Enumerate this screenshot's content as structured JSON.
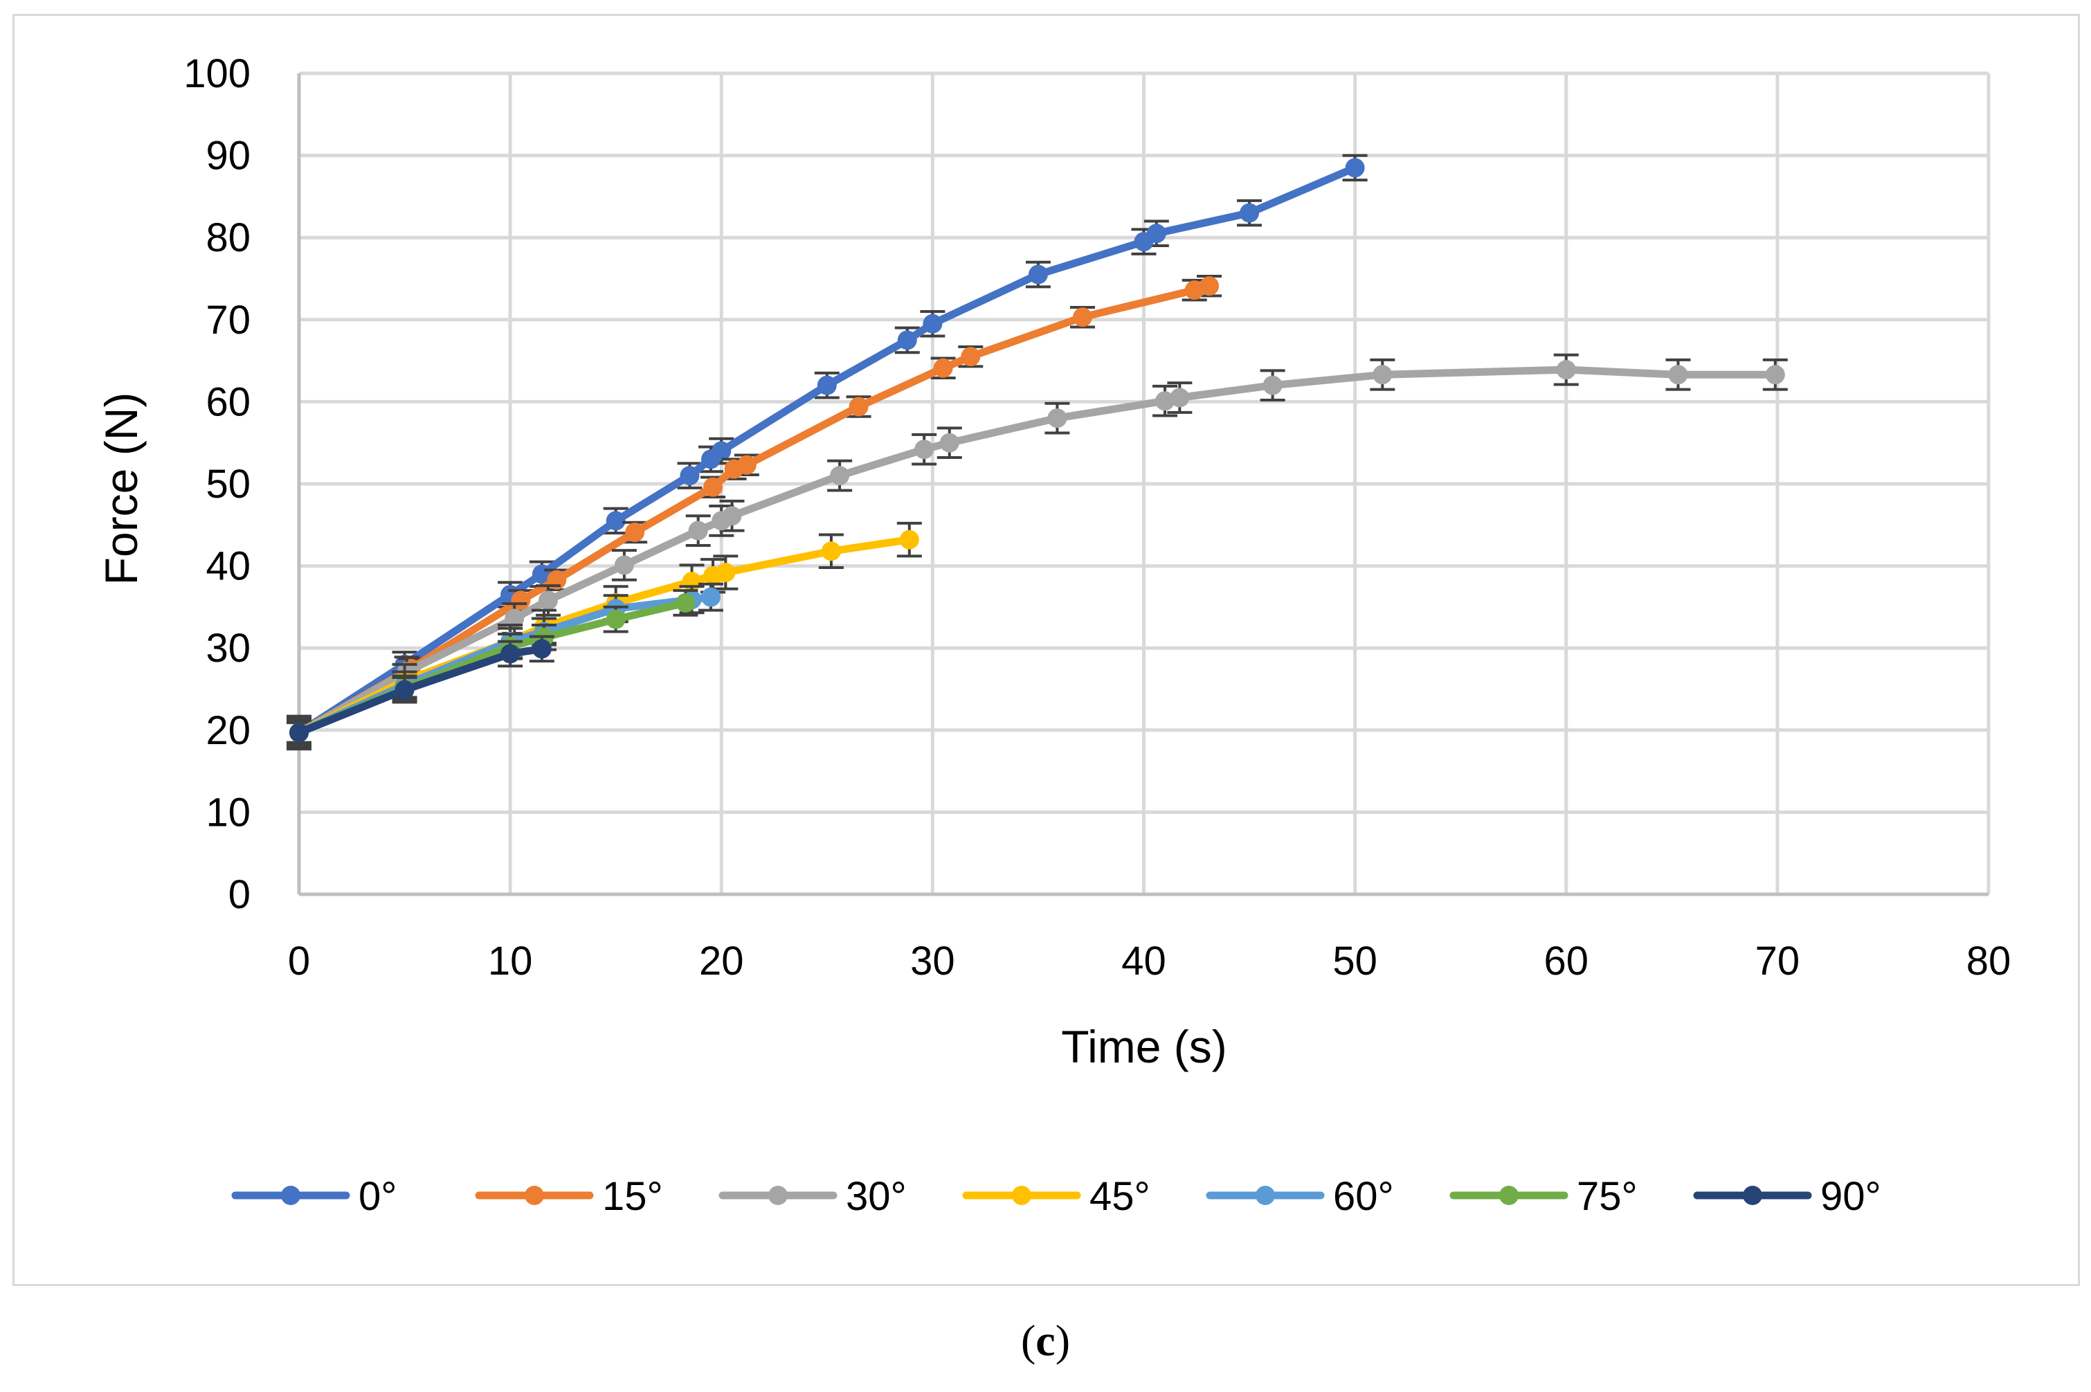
{
  "caption": {
    "open": "(",
    "letter": "c",
    "close": ")"
  },
  "chart_data": {
    "type": "line",
    "title": "",
    "xlabel": "Time (s)",
    "ylabel": "Force (N)",
    "xlim": [
      0,
      80
    ],
    "ylim": [
      0,
      100
    ],
    "xticks": [
      0,
      10,
      20,
      30,
      40,
      50,
      60,
      70,
      80
    ],
    "yticks": [
      0,
      10,
      20,
      30,
      40,
      50,
      60,
      70,
      80,
      90,
      100
    ],
    "grid": true,
    "error_bars": true,
    "legend_position": "bottom",
    "series": [
      {
        "name": "0°",
        "color": "#4472C4",
        "err": 1.5,
        "x": [
          0,
          5,
          10,
          11.5,
          15,
          18.5,
          19.5,
          20,
          25,
          28.8,
          30,
          35,
          40,
          40.6,
          45,
          50
        ],
        "y": [
          19.7,
          28,
          36.5,
          39,
          45.5,
          51,
          53,
          54,
          62,
          67.5,
          69.5,
          75.5,
          79.5,
          80.5,
          83,
          88.5
        ]
      },
      {
        "name": "15°",
        "color": "#ED7D31",
        "err": 1.2,
        "x": [
          0,
          5.3,
          10.5,
          12.2,
          15.9,
          19.6,
          20.6,
          21.2,
          26.5,
          30.5,
          31.8,
          37.1,
          42.4,
          43.1
        ],
        "y": [
          19.7,
          27.5,
          35.8,
          38.3,
          44.1,
          49.6,
          51.8,
          52.3,
          59.4,
          64.1,
          65.5,
          70.3,
          73.6,
          74.1
        ]
      },
      {
        "name": "30°",
        "color": "#A5A5A5",
        "err": 1.8,
        "x": [
          0,
          5.1,
          10.2,
          11.8,
          15.4,
          18.9,
          20,
          20.5,
          25.6,
          29.6,
          30.8,
          35.9,
          41,
          41.7,
          46.1,
          51.3,
          60,
          65.3,
          69.9
        ],
        "y": [
          19.7,
          27.1,
          33.6,
          35.8,
          40.1,
          44.3,
          45.5,
          46.1,
          51,
          54.2,
          55,
          58,
          60.1,
          60.5,
          62,
          63.3,
          63.9,
          63.3,
          63.3
        ]
      },
      {
        "name": "45°",
        "color": "#FFC000",
        "err": 2.0,
        "x": [
          0,
          5,
          10,
          11.6,
          15,
          18.6,
          19.6,
          20.2,
          25.2,
          28.9
        ],
        "y": [
          19.7,
          26,
          30.8,
          32.6,
          35.5,
          38.1,
          38.8,
          39.2,
          41.8,
          43.2
        ]
      },
      {
        "name": "60°",
        "color": "#5B9BD5",
        "err": 1.6,
        "x": [
          0,
          5,
          10,
          11.6,
          15,
          18.6,
          19.5
        ],
        "y": [
          19.7,
          25.5,
          30.8,
          32,
          34.8,
          35.9,
          36.2
        ]
      },
      {
        "name": "75°",
        "color": "#70AD47",
        "err": 1.5,
        "x": [
          0,
          5,
          10,
          11.6,
          15,
          18.3
        ],
        "y": [
          19.7,
          25.1,
          30.2,
          31.3,
          33.5,
          35.5
        ]
      },
      {
        "name": "90°",
        "color": "#264478",
        "err": 1.5,
        "x": [
          0,
          5,
          10,
          11.5
        ],
        "y": [
          19.7,
          24.9,
          29.3,
          29.9
        ]
      }
    ]
  }
}
